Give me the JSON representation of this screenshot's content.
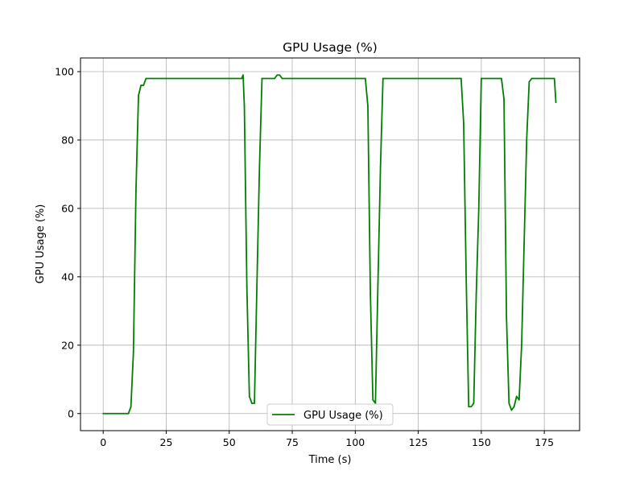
{
  "chart_data": {
    "type": "line",
    "title": "GPU Usage (%)",
    "xlabel": "Time (s)",
    "ylabel": "GPU Usage (%)",
    "xlim": [
      -9,
      189
    ],
    "ylim": [
      -5,
      104
    ],
    "xticks": [
      0,
      25,
      50,
      75,
      100,
      125,
      150,
      175
    ],
    "yticks": [
      0,
      20,
      40,
      60,
      80,
      100
    ],
    "grid": true,
    "legend_position": "bottom-center",
    "series": [
      {
        "name": "GPU Usage (%)",
        "color": "#008000",
        "x": [
          0,
          10,
          11,
          12,
          13,
          14,
          15,
          16,
          17,
          55,
          55.5,
          56,
          57,
          58,
          59,
          60,
          61,
          62,
          63,
          68,
          69,
          70,
          71,
          104,
          105,
          106,
          107,
          108,
          109,
          110,
          111,
          112,
          142,
          143,
          144,
          145,
          146,
          147,
          148,
          149,
          150,
          158,
          159,
          160,
          161,
          162,
          163,
          164,
          165,
          166,
          167,
          168,
          169,
          170,
          179,
          179.6
        ],
        "y": [
          0,
          0,
          2,
          18,
          65,
          93,
          96,
          96,
          98,
          98,
          99,
          90,
          37,
          5,
          3,
          3,
          38,
          72,
          98,
          98,
          99,
          99,
          98,
          98,
          90,
          35,
          4,
          3,
          38,
          72,
          98,
          98,
          98,
          85,
          40,
          2,
          2,
          3,
          35,
          60,
          98,
          98,
          92,
          28,
          3,
          1,
          2,
          5,
          4,
          20,
          50,
          80,
          97,
          98,
          98,
          91
        ]
      }
    ]
  }
}
